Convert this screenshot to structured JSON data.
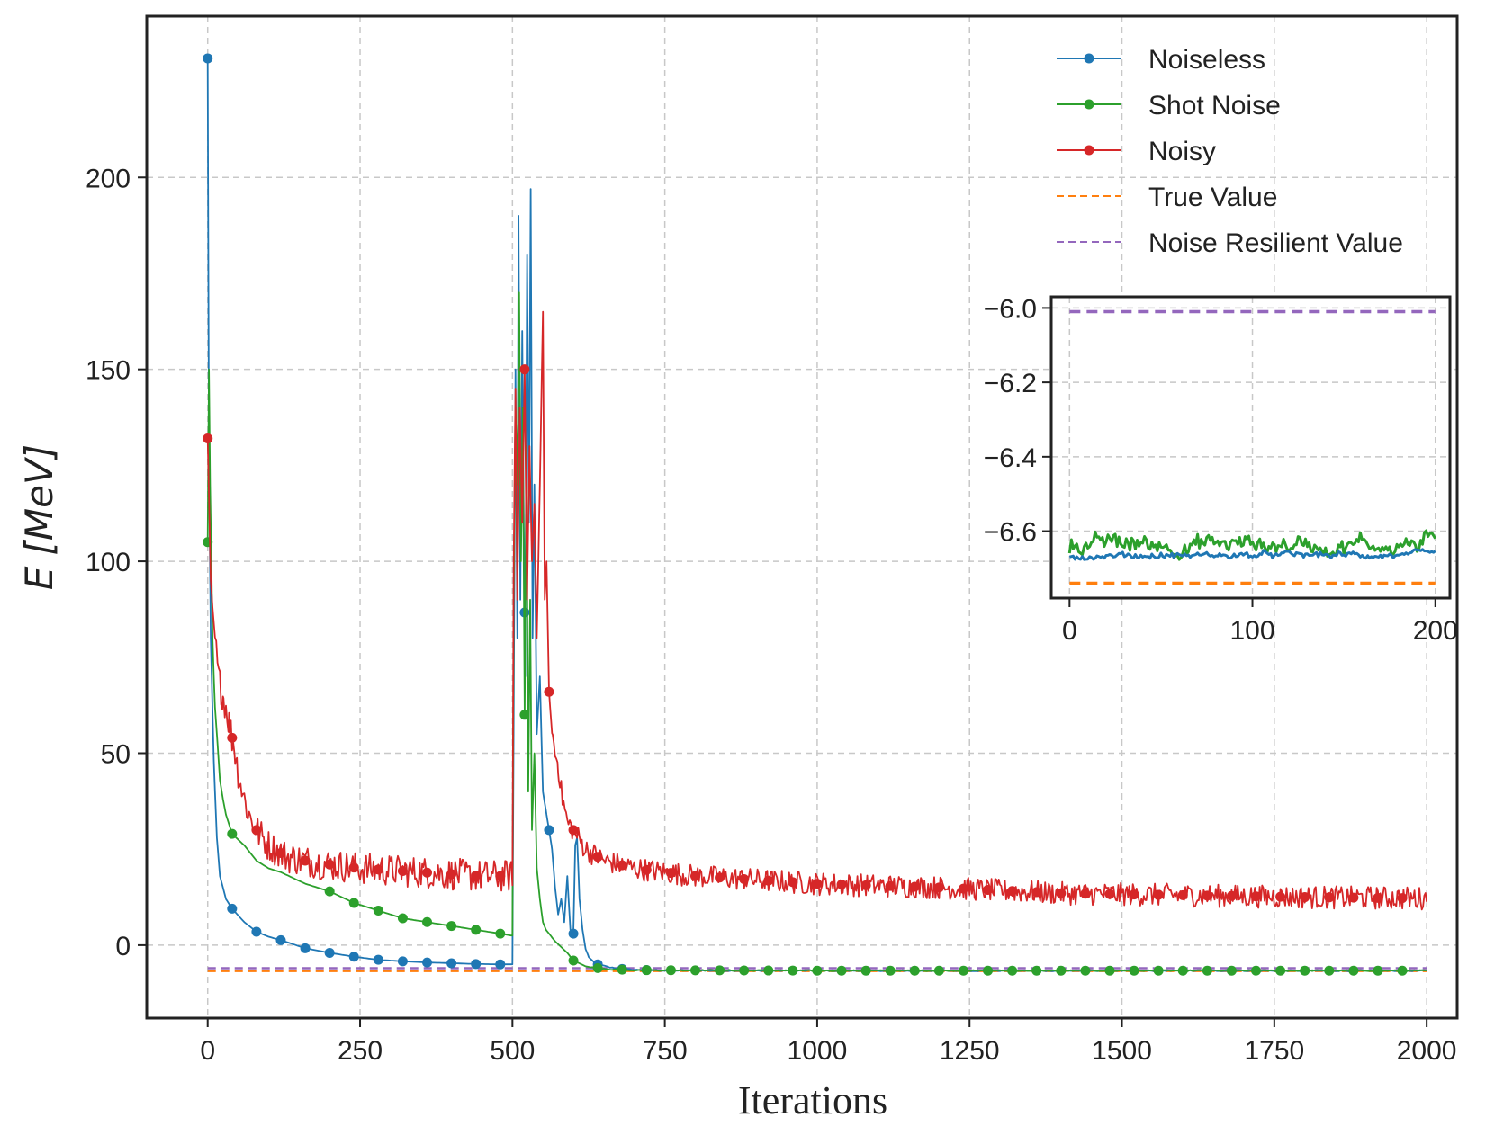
{
  "chart_data": {
    "type": "line",
    "title": "",
    "xlabel": "Iterations",
    "ylabel_var": "E",
    "ylabel_unit": "[MeV]",
    "xlim": [
      -100,
      2050
    ],
    "ylim": [
      -19,
      242
    ],
    "xticks": [
      0,
      250,
      500,
      750,
      1000,
      1250,
      1500,
      1750,
      2000
    ],
    "yticks": [
      0,
      50,
      100,
      150,
      200
    ],
    "grid": true,
    "legend_position": "top-right",
    "series": [
      {
        "name": "Noiseless",
        "color": "#1f77b4",
        "style": "line-marker",
        "points": [
          [
            0,
            231
          ],
          [
            2,
            130
          ],
          [
            5,
            80
          ],
          [
            10,
            48
          ],
          [
            15,
            28
          ],
          [
            20,
            18
          ],
          [
            30,
            12
          ],
          [
            40,
            9.5
          ],
          [
            60,
            6
          ],
          [
            80,
            3.5
          ],
          [
            100,
            2.2
          ],
          [
            120,
            1.3
          ],
          [
            160,
            -0.8
          ],
          [
            200,
            -2
          ],
          [
            240,
            -3
          ],
          [
            280,
            -3.8
          ],
          [
            320,
            -4.2
          ],
          [
            360,
            -4.5
          ],
          [
            400,
            -4.7
          ],
          [
            440,
            -4.9
          ],
          [
            480,
            -5
          ],
          [
            498,
            -5
          ],
          [
            500,
            -5
          ],
          [
            502,
            60
          ],
          [
            505,
            150
          ],
          [
            508,
            80
          ],
          [
            510,
            190
          ],
          [
            513,
            90
          ],
          [
            516,
            160
          ],
          [
            518,
            120
          ],
          [
            521,
            70
          ],
          [
            524,
            180
          ],
          [
            527,
            110
          ],
          [
            530,
            197
          ],
          [
            533,
            80
          ],
          [
            536,
            120
          ],
          [
            540,
            55
          ],
          [
            545,
            70
          ],
          [
            550,
            40
          ],
          [
            555,
            35
          ],
          [
            560,
            30
          ],
          [
            565,
            25
          ],
          [
            570,
            15
          ],
          [
            575,
            8
          ],
          [
            580,
            12
          ],
          [
            585,
            6
          ],
          [
            590,
            18
          ],
          [
            595,
            4
          ],
          [
            600,
            3
          ],
          [
            603,
            26
          ],
          [
            606,
            28
          ],
          [
            610,
            12
          ],
          [
            615,
            4
          ],
          [
            620,
            -1
          ],
          [
            625,
            -3
          ],
          [
            630,
            -4
          ],
          [
            640,
            -5
          ],
          [
            660,
            -5.8
          ],
          [
            680,
            -6.2
          ],
          [
            700,
            -6.4
          ],
          [
            750,
            -6.6
          ],
          [
            1000,
            -6.65
          ],
          [
            1500,
            -6.65
          ],
          [
            2000,
            -6.66
          ]
        ],
        "markers_x": [
          0,
          40,
          80,
          120,
          160,
          200,
          240,
          280,
          320,
          360,
          400,
          440,
          480,
          520,
          560,
          600,
          640,
          680,
          720
        ]
      },
      {
        "name": "Shot Noise",
        "color": "#2ca02c",
        "style": "line-marker",
        "points": [
          [
            0,
            105
          ],
          [
            2,
            150
          ],
          [
            4,
            120
          ],
          [
            6,
            100
          ],
          [
            8,
            80
          ],
          [
            10,
            70
          ],
          [
            12,
            62
          ],
          [
            15,
            55
          ],
          [
            18,
            48
          ],
          [
            20,
            43
          ],
          [
            25,
            38
          ],
          [
            30,
            34
          ],
          [
            40,
            29
          ],
          [
            60,
            26
          ],
          [
            80,
            22
          ],
          [
            100,
            20
          ],
          [
            120,
            19
          ],
          [
            160,
            16
          ],
          [
            200,
            14
          ],
          [
            240,
            11
          ],
          [
            280,
            9
          ],
          [
            320,
            7
          ],
          [
            360,
            6
          ],
          [
            400,
            5
          ],
          [
            440,
            4
          ],
          [
            480,
            3
          ],
          [
            498,
            2.5
          ],
          [
            500,
            2.5
          ],
          [
            502,
            90
          ],
          [
            505,
            140
          ],
          [
            508,
            120
          ],
          [
            511,
            170
          ],
          [
            514,
            100
          ],
          [
            517,
            140
          ],
          [
            520,
            60
          ],
          [
            523,
            130
          ],
          [
            526,
            40
          ],
          [
            529,
            90
          ],
          [
            532,
            30
          ],
          [
            536,
            50
          ],
          [
            540,
            20
          ],
          [
            545,
            12
          ],
          [
            550,
            6
          ],
          [
            555,
            4
          ],
          [
            560,
            3
          ],
          [
            565,
            2
          ],
          [
            570,
            1
          ],
          [
            580,
            -0.5
          ],
          [
            590,
            -2
          ],
          [
            600,
            -4
          ],
          [
            620,
            -5.5
          ],
          [
            650,
            -6.2
          ],
          [
            700,
            -6.5
          ],
          [
            1000,
            -6.63
          ],
          [
            1500,
            -6.63
          ],
          [
            2000,
            -6.63
          ]
        ],
        "markers_x": [
          0,
          40,
          200,
          240,
          280,
          320,
          360,
          400,
          440,
          480,
          520,
          600,
          640,
          680,
          720,
          760,
          800,
          840,
          880,
          920,
          960,
          1000,
          1040,
          1080,
          1120,
          1160,
          1200,
          1240,
          1280,
          1320,
          1360,
          1400,
          1440,
          1480,
          1520,
          1560,
          1600,
          1640,
          1680,
          1720,
          1760,
          1800,
          1840,
          1880,
          1920,
          1960
        ]
      },
      {
        "name": "Noisy",
        "color": "#d62728",
        "style": "line-marker",
        "points": [
          [
            0,
            132
          ],
          [
            3,
            110
          ],
          [
            5,
            95
          ],
          [
            8,
            88
          ],
          [
            12,
            80
          ],
          [
            16,
            72
          ],
          [
            20,
            68
          ],
          [
            25,
            65
          ],
          [
            30,
            62
          ],
          [
            35,
            58
          ],
          [
            40,
            54
          ],
          [
            45,
            50
          ],
          [
            50,
            45
          ],
          [
            60,
            38
          ],
          [
            70,
            33
          ],
          [
            80,
            30
          ],
          [
            100,
            26
          ],
          [
            130,
            23
          ],
          [
            160,
            22
          ],
          [
            200,
            21
          ],
          [
            250,
            20
          ],
          [
            300,
            19.5
          ],
          [
            350,
            19
          ],
          [
            400,
            18.5
          ],
          [
            450,
            18
          ],
          [
            498,
            18
          ],
          [
            500,
            18
          ],
          [
            502,
            100
          ],
          [
            505,
            145
          ],
          [
            508,
            90
          ],
          [
            512,
            140
          ],
          [
            516,
            110
          ],
          [
            520,
            150
          ],
          [
            524,
            90
          ],
          [
            528,
            130
          ],
          [
            532,
            100
          ],
          [
            536,
            115
          ],
          [
            540,
            80
          ],
          [
            545,
            120
          ],
          [
            550,
            165
          ],
          [
            553,
            90
          ],
          [
            556,
            100
          ],
          [
            560,
            66
          ],
          [
            565,
            55
          ],
          [
            570,
            50
          ],
          [
            575,
            47
          ],
          [
            580,
            40
          ],
          [
            590,
            32
          ],
          [
            600,
            30
          ],
          [
            620,
            25
          ],
          [
            650,
            22
          ],
          [
            700,
            20
          ],
          [
            800,
            18
          ],
          [
            1000,
            16
          ],
          [
            1200,
            15
          ],
          [
            1400,
            13.5
          ],
          [
            1600,
            13
          ],
          [
            1800,
            12.5
          ],
          [
            2000,
            12.2
          ]
        ],
        "markers_x": [
          0,
          40,
          80,
          120,
          160,
          200,
          240,
          280,
          320,
          360,
          400,
          440,
          480,
          520,
          560,
          600,
          640,
          680,
          720,
          760,
          800,
          840,
          880,
          920,
          960,
          1000,
          1040,
          1080,
          1120,
          1160,
          1200,
          1240,
          1280,
          1320,
          1360,
          1400,
          1440,
          1480,
          1520,
          1560,
          1600,
          1640,
          1680,
          1720,
          1760,
          1800,
          1840,
          1880,
          1920,
          1960
        ],
        "noise_amplitude": 3
      },
      {
        "name": "True Value",
        "color": "#ff7f0e",
        "style": "dashed",
        "points": [
          [
            0,
            -6.74
          ],
          [
            2000,
            -6.74
          ]
        ]
      },
      {
        "name": "Noise Resilient Value",
        "color": "#9467bd",
        "style": "dashed",
        "points": [
          [
            0,
            -6.01
          ],
          [
            2000,
            -6.01
          ]
        ]
      }
    ],
    "inset": {
      "xlim": [
        -10,
        208
      ],
      "ylim": [
        -6.78,
        -5.97
      ],
      "xticks": [
        0,
        100,
        200
      ],
      "yticks": [
        -6.6,
        -6.4,
        -6.2,
        -6.0
      ],
      "ytick_labels": [
        "−6.6",
        "−6.4",
        "−6.2",
        "−6.0"
      ],
      "grid": true,
      "series": [
        {
          "name": "Noise Resilient Value",
          "color": "#9467bd",
          "style": "dashed",
          "points": [
            [
              0,
              -6.01
            ],
            [
              200,
              -6.01
            ]
          ]
        },
        {
          "name": "True Value",
          "color": "#ff7f0e",
          "style": "dashed",
          "points": [
            [
              0,
              -6.74
            ],
            [
              200,
              -6.74
            ]
          ]
        },
        {
          "name": "Shot Noise",
          "color": "#2ca02c",
          "style": "noisy",
          "mean": -6.635,
          "amplitude": 0.03
        },
        {
          "name": "Noiseless",
          "color": "#1f77b4",
          "style": "noisy",
          "mean": -6.665,
          "amplitude": 0.01
        }
      ]
    }
  }
}
